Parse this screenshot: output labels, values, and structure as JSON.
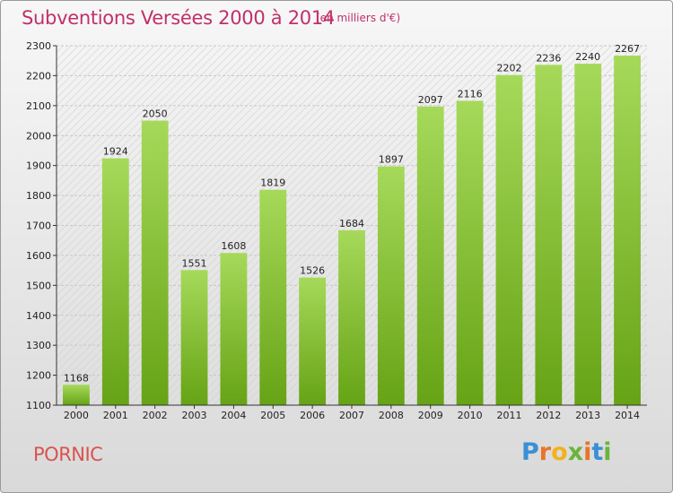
{
  "header": {
    "title": "Subventions Versées 2000 à 2014",
    "subtitle": "(en milliers d'€)"
  },
  "footer": {
    "commune": "PORNIC",
    "logo": {
      "letters": [
        "P",
        "r",
        "o",
        "x",
        "i",
        "t",
        "i"
      ],
      "colors": [
        "#3a8fd6",
        "#e8742a",
        "#f2b21f",
        "#6bb33a",
        "#e8742a",
        "#3a8fd6",
        "#6bb33a"
      ]
    }
  },
  "colors": {
    "bar_light": "#a6d95a",
    "bar_dark": "#66a315",
    "text_accent": "#c0306a"
  },
  "chart_data": {
    "type": "bar",
    "title": "Subventions Versées 2000 à 2014",
    "subtitle": "(en milliers d'€)",
    "categories": [
      "2000",
      "2001",
      "2002",
      "2003",
      "2004",
      "2005",
      "2006",
      "2007",
      "2008",
      "2009",
      "2010",
      "2011",
      "2012",
      "2013",
      "2014"
    ],
    "values": [
      1168,
      1924,
      2050,
      1551,
      1608,
      1819,
      1526,
      1684,
      1897,
      2097,
      2116,
      2202,
      2236,
      2240,
      2267
    ],
    "yticks": [
      1100,
      1200,
      1300,
      1400,
      1500,
      1600,
      1700,
      1800,
      1900,
      2000,
      2100,
      2200,
      2300
    ],
    "ylim": [
      1100,
      2300
    ],
    "grid": true,
    "data_labels": true
  }
}
